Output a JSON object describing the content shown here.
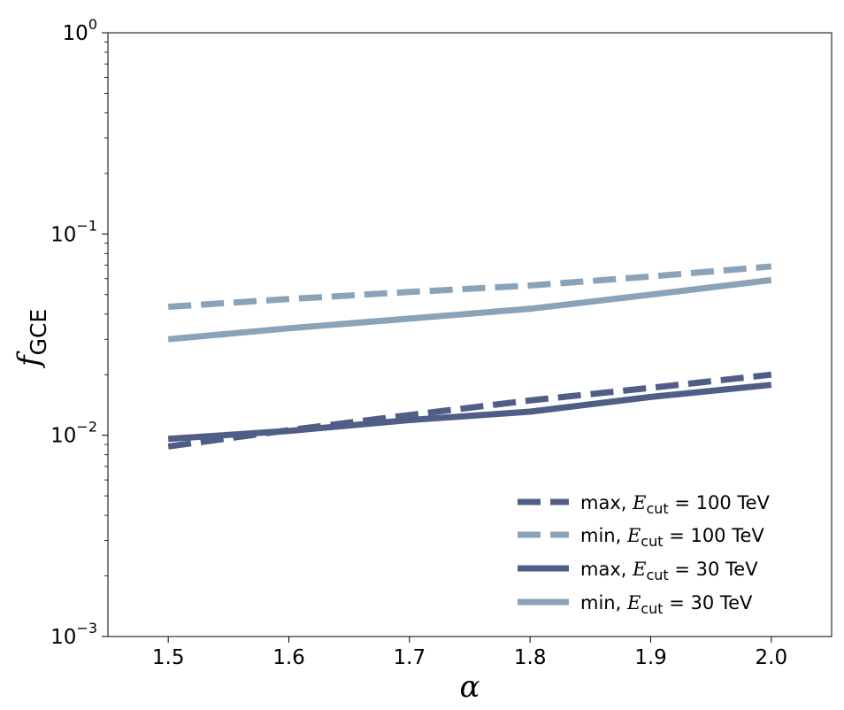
{
  "chart_data": {
    "type": "line",
    "title": "",
    "xlabel": "α",
    "ylabel": "f",
    "ylabel_sub": "GCE",
    "yscale": "log",
    "xlim": [
      1.45,
      2.05
    ],
    "ylim": [
      0.001,
      1
    ],
    "grid": false,
    "legend_position": "bottom-right",
    "x_ticks": [
      1.5,
      1.6,
      1.7,
      1.8,
      1.9,
      2.0
    ],
    "x_tick_labels": [
      "1.5",
      "1.6",
      "1.7",
      "1.8",
      "1.9",
      "2.0"
    ],
    "y_ticks": [
      {
        "value": 1,
        "base": "10",
        "exp": "0"
      },
      {
        "value": 0.1,
        "base": "10",
        "exp": "−1"
      },
      {
        "value": 0.01,
        "base": "10",
        "exp": "−2"
      },
      {
        "value": 0.001,
        "base": "10",
        "exp": "−3"
      }
    ],
    "colors": {
      "max": "#4f5d87",
      "min": "#8aa3b9"
    },
    "x": [
      1.5,
      1.6,
      1.7,
      1.8,
      1.9,
      2.0
    ],
    "series": [
      {
        "key": "max100",
        "legend_prefix": "max, ",
        "legend_E": "E",
        "legend_sub": "cut",
        "legend_suffix": " =  100 TeV",
        "dash": true,
        "color": "#4f5d87",
        "values": [
          0.0088,
          0.0106,
          0.0126,
          0.0149,
          0.0172,
          0.02
        ]
      },
      {
        "key": "min100",
        "legend_prefix": "min, ",
        "legend_E": "E",
        "legend_sub": "cut",
        "legend_suffix": " =  100 TeV",
        "dash": true,
        "color": "#8aa3b9",
        "values": [
          0.0435,
          0.0475,
          0.0515,
          0.0555,
          0.0615,
          0.069
        ]
      },
      {
        "key": "max30",
        "legend_prefix": "max, ",
        "legend_E": "E",
        "legend_sub": "cut",
        "legend_suffix": " =  30 TeV",
        "dash": false,
        "color": "#4f5d87",
        "values": [
          0.0096,
          0.0105,
          0.0119,
          0.0131,
          0.0155,
          0.0178
        ]
      },
      {
        "key": "min30",
        "legend_prefix": "min, ",
        "legend_E": "E",
        "legend_sub": "cut",
        "legend_suffix": " =  30 TeV",
        "dash": false,
        "color": "#8aa3b9",
        "values": [
          0.03,
          0.034,
          0.038,
          0.0425,
          0.05,
          0.059
        ]
      }
    ]
  }
}
